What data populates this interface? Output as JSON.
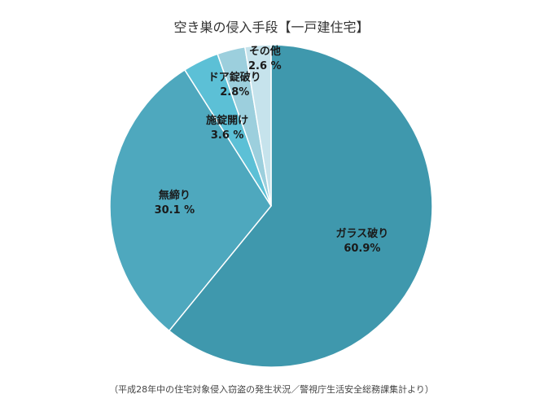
{
  "title": "空き巣の侵入手段【一戸建住宅】",
  "source": "（平成28年中の住宅対象侵入窃盗の発生状況／警視庁生活安全総務課集計より）",
  "chart_data": {
    "type": "pie",
    "title": "空き巣の侵入手段【一戸建住宅】",
    "start": "12 o'clock, clockwise",
    "slices": [
      {
        "label": "ガラス破り",
        "value": 60.9,
        "value_text": "60.9%",
        "color": "#3f98ad"
      },
      {
        "label": "無締り",
        "value": 30.1,
        "value_text": "30.1 %",
        "color": "#4ea8be"
      },
      {
        "label": "施錠開け",
        "value": 3.6,
        "value_text": "3.6 %",
        "color": "#5cc0d6"
      },
      {
        "label": "ドア錠破り",
        "value": 2.8,
        "value_text": "2.8%",
        "color": "#9ccfdd"
      },
      {
        "label": "その他",
        "value": 2.6,
        "value_text": "2.6 %",
        "color": "#c6e3ec"
      }
    ]
  }
}
